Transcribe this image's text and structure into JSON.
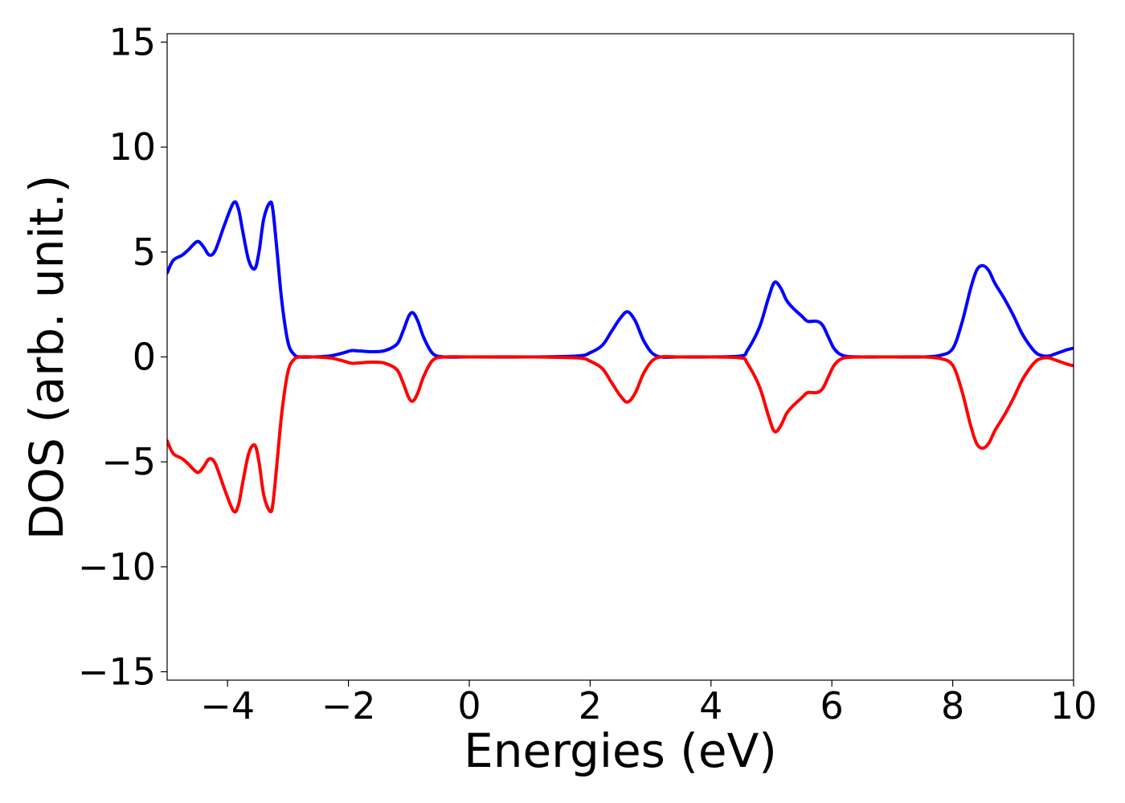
{
  "chart_data": {
    "type": "line",
    "xlabel": "Energies (eV)",
    "ylabel": "DOS (arb. unit.)",
    "xlim": [
      -5,
      10
    ],
    "ylim": [
      -15.4,
      15.4
    ],
    "xticks": [
      -4,
      -2,
      0,
      2,
      4,
      6,
      8,
      10
    ],
    "xtick_labels": [
      "−4",
      "−2",
      "0",
      "2",
      "4",
      "6",
      "8",
      "10"
    ],
    "yticks": [
      -15,
      -10,
      -5,
      0,
      5,
      10,
      15
    ],
    "ytick_labels": [
      "−15",
      "−10",
      "−5",
      "0",
      "5",
      "10",
      "15"
    ],
    "grid": false,
    "legend": "none",
    "series": [
      {
        "color": "#0000ff",
        "x": [
          -5.0,
          -4.9,
          -4.75,
          -4.65,
          -4.5,
          -4.4,
          -4.3,
          -4.2,
          -4.05,
          -3.9,
          -3.82,
          -3.75,
          -3.65,
          -3.55,
          -3.48,
          -3.4,
          -3.3,
          -3.25,
          -3.18,
          -3.1,
          -3.0,
          -2.9,
          -2.8,
          -2.6,
          -2.3,
          -2.1,
          -1.95,
          -1.8,
          -1.6,
          -1.4,
          -1.2,
          -1.1,
          -1.0,
          -0.93,
          -0.85,
          -0.75,
          -0.6,
          -0.4,
          0.0,
          1.0,
          1.8,
          2.0,
          2.2,
          2.35,
          2.5,
          2.62,
          2.75,
          2.9,
          3.1,
          3.5,
          4.0,
          4.5,
          4.6,
          4.8,
          4.95,
          5.05,
          5.15,
          5.25,
          5.35,
          5.5,
          5.6,
          5.75,
          5.85,
          5.95,
          6.05,
          6.2,
          6.5,
          7.0,
          7.5,
          7.8,
          8.0,
          8.15,
          8.3,
          8.4,
          8.5,
          8.6,
          8.7,
          8.85,
          9.0,
          9.15,
          9.3,
          9.4,
          9.5,
          9.6,
          9.7,
          9.8,
          9.9,
          10.0
        ],
        "y": [
          4.0,
          4.6,
          4.85,
          5.1,
          5.5,
          5.25,
          4.85,
          5.1,
          6.3,
          7.35,
          7.05,
          6.0,
          4.6,
          4.2,
          5.0,
          6.6,
          7.35,
          7.0,
          5.0,
          2.6,
          0.7,
          0.12,
          0.0,
          0.0,
          0.05,
          0.18,
          0.3,
          0.28,
          0.25,
          0.3,
          0.6,
          1.2,
          1.95,
          2.1,
          1.7,
          0.9,
          0.15,
          0.0,
          0.0,
          0.0,
          0.05,
          0.2,
          0.55,
          1.2,
          1.85,
          2.15,
          1.7,
          0.7,
          0.05,
          0.0,
          0.0,
          0.05,
          0.3,
          1.4,
          2.8,
          3.55,
          3.3,
          2.7,
          2.35,
          1.95,
          1.7,
          1.7,
          1.5,
          0.9,
          0.35,
          0.05,
          0.0,
          0.0,
          0.0,
          0.08,
          0.4,
          1.6,
          3.3,
          4.15,
          4.35,
          4.1,
          3.5,
          2.8,
          2.0,
          1.1,
          0.45,
          0.15,
          0.05,
          0.05,
          0.15,
          0.25,
          0.35,
          0.42
        ]
      },
      {
        "color": "#ff0000",
        "x": [
          -5.0,
          -4.9,
          -4.75,
          -4.65,
          -4.5,
          -4.4,
          -4.3,
          -4.2,
          -4.05,
          -3.9,
          -3.82,
          -3.75,
          -3.65,
          -3.55,
          -3.48,
          -3.4,
          -3.3,
          -3.25,
          -3.18,
          -3.1,
          -3.0,
          -2.9,
          -2.8,
          -2.6,
          -2.3,
          -2.1,
          -1.95,
          -1.8,
          -1.6,
          -1.4,
          -1.2,
          -1.1,
          -1.0,
          -0.93,
          -0.85,
          -0.75,
          -0.6,
          -0.4,
          0.0,
          1.0,
          1.8,
          2.0,
          2.2,
          2.35,
          2.5,
          2.62,
          2.75,
          2.9,
          3.1,
          3.5,
          4.0,
          4.5,
          4.6,
          4.8,
          4.95,
          5.05,
          5.15,
          5.25,
          5.35,
          5.5,
          5.6,
          5.75,
          5.85,
          5.95,
          6.05,
          6.2,
          6.5,
          7.0,
          7.5,
          7.8,
          8.0,
          8.15,
          8.3,
          8.4,
          8.5,
          8.6,
          8.7,
          8.85,
          9.0,
          9.15,
          9.3,
          9.4,
          9.5,
          9.6,
          9.7,
          9.8,
          9.9,
          10.0
        ],
        "y": [
          -4.0,
          -4.6,
          -4.85,
          -5.1,
          -5.5,
          -5.25,
          -4.85,
          -5.1,
          -6.3,
          -7.35,
          -7.05,
          -6.0,
          -4.6,
          -4.2,
          -5.0,
          -6.6,
          -7.35,
          -7.0,
          -5.0,
          -2.6,
          -0.7,
          -0.12,
          -0.0,
          -0.0,
          -0.05,
          -0.18,
          -0.3,
          -0.28,
          -0.25,
          -0.3,
          -0.6,
          -1.2,
          -1.95,
          -2.1,
          -1.7,
          -0.9,
          -0.15,
          -0.0,
          -0.0,
          -0.0,
          -0.05,
          -0.2,
          -0.55,
          -1.2,
          -1.85,
          -2.15,
          -1.7,
          -0.7,
          -0.05,
          -0.0,
          -0.0,
          -0.05,
          -0.3,
          -1.4,
          -2.8,
          -3.55,
          -3.3,
          -2.7,
          -2.35,
          -1.95,
          -1.7,
          -1.7,
          -1.5,
          -0.9,
          -0.35,
          -0.05,
          -0.0,
          -0.0,
          -0.0,
          -0.08,
          -0.4,
          -1.6,
          -3.3,
          -4.15,
          -4.35,
          -4.1,
          -3.5,
          -2.8,
          -2.0,
          -1.1,
          -0.45,
          -0.15,
          -0.05,
          -0.05,
          -0.15,
          -0.25,
          -0.35,
          -0.42
        ]
      }
    ]
  }
}
